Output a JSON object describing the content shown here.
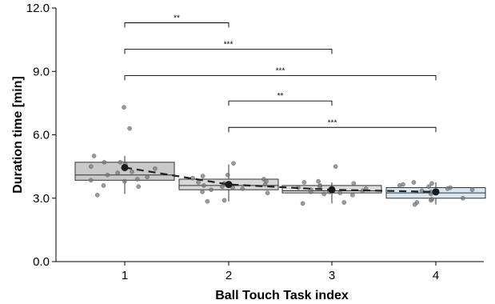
{
  "chart_data": {
    "type": "box",
    "xlabel": "Ball Touch Task index",
    "ylabel": "Duration time [min]",
    "ylim": [
      0,
      12
    ],
    "yticks": [
      "0.0",
      "3.0",
      "6.0",
      "9.0",
      "12.0"
    ],
    "yticks_values": [
      0,
      3,
      6,
      9,
      12
    ],
    "categories": [
      "1",
      "2",
      "3",
      "4"
    ],
    "grid": false,
    "box_colors": [
      "#c9c9c9",
      "#d8d8d8",
      "#dcdcdc",
      "#d8e6f2"
    ],
    "boxes": [
      {
        "category": "1",
        "q1": 3.85,
        "median": 4.1,
        "q3": 4.7,
        "whisker_low": 3.2,
        "whisker_high": 5.0,
        "mean": 4.45
      },
      {
        "category": "2",
        "q1": 3.4,
        "median": 3.6,
        "q3": 3.9,
        "whisker_low": 2.85,
        "whisker_high": 4.6,
        "mean": 3.65
      },
      {
        "category": "3",
        "q1": 3.25,
        "median": 3.35,
        "q3": 3.6,
        "whisker_low": 2.75,
        "whisker_high": 3.75,
        "mean": 3.4
      },
      {
        "category": "4",
        "q1": 3.0,
        "median": 3.25,
        "q3": 3.5,
        "whisker_low": 2.7,
        "whisker_high": 3.75,
        "mean": 3.3
      }
    ],
    "points": [
      {
        "x": 1,
        "values": [
          7.3,
          6.3,
          5.0,
          4.7,
          4.7,
          4.6,
          4.5,
          4.4,
          4.25,
          4.2,
          4.1,
          4.0,
          3.9,
          3.85,
          3.8,
          3.6,
          3.55,
          3.15
        ]
      },
      {
        "x": 2,
        "values": [
          4.65,
          4.1,
          4.05,
          3.95,
          3.9,
          3.8,
          3.75,
          3.7,
          3.65,
          3.6,
          3.55,
          3.5,
          3.45,
          3.4,
          3.3,
          3.25,
          2.9,
          2.85
        ]
      },
      {
        "x": 3,
        "values": [
          4.5,
          3.8,
          3.75,
          3.7,
          3.6,
          3.55,
          3.5,
          3.45,
          3.4,
          3.35,
          3.3,
          3.3,
          3.25,
          3.2,
          3.15,
          2.8,
          2.75
        ]
      },
      {
        "x": 4,
        "values": [
          3.75,
          3.7,
          3.65,
          3.6,
          3.55,
          3.5,
          3.45,
          3.4,
          3.35,
          3.3,
          3.25,
          3.2,
          3.0,
          2.95,
          2.9,
          2.8,
          2.7
        ]
      }
    ],
    "trend_line": [
      4.45,
      3.65,
      3.4,
      3.3
    ],
    "significance": [
      {
        "from": 1,
        "to": 2,
        "y": 11.3,
        "label": "**"
      },
      {
        "from": 1,
        "to": 3,
        "y": 10.05,
        "label": "***"
      },
      {
        "from": 1,
        "to": 4,
        "y": 8.8,
        "label": "***"
      },
      {
        "from": 2,
        "to": 3,
        "y": 7.6,
        "label": "**"
      },
      {
        "from": 2,
        "to": 4,
        "y": 6.35,
        "label": "***"
      }
    ]
  }
}
